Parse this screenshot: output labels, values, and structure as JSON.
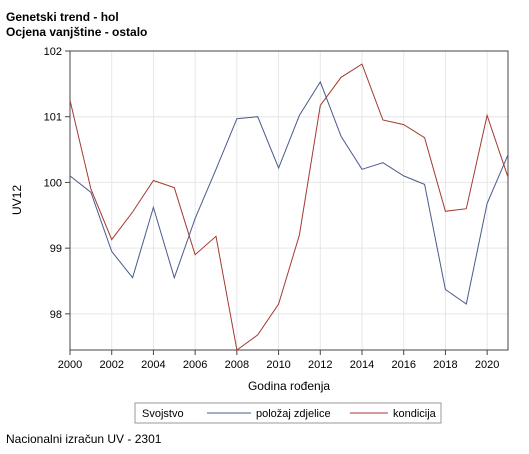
{
  "titles": {
    "line1": "Genetski trend - hol",
    "line2": "Ocjena vanjštine - ostalo"
  },
  "footnote": "Nacionalni izračun UV - 2301",
  "chart_data": {
    "type": "line",
    "xlabel": "Godina rođenja",
    "ylabel": "UV12",
    "xlim": [
      2000,
      2021
    ],
    "ylim": [
      97.45,
      102.0
    ],
    "xticks": [
      2000,
      2002,
      2004,
      2006,
      2008,
      2010,
      2012,
      2014,
      2016,
      2018,
      2020
    ],
    "yticks": [
      98,
      99,
      100,
      101,
      102
    ],
    "grid": true,
    "legend": {
      "title": "Svojstvo",
      "placement": "bottom"
    },
    "x": [
      2000,
      2001,
      2002,
      2003,
      2004,
      2005,
      2006,
      2007,
      2008,
      2009,
      2010,
      2011,
      2012,
      2013,
      2014,
      2015,
      2016,
      2017,
      2018,
      2019,
      2020,
      2021
    ],
    "series": [
      {
        "name": "položaj zdjelice",
        "color": "#4a5a8c",
        "values": [
          100.1,
          99.85,
          98.95,
          98.55,
          99.62,
          98.55,
          99.45,
          100.2,
          100.97,
          101.0,
          100.22,
          101.02,
          101.53,
          100.7,
          100.2,
          100.3,
          100.1,
          99.97,
          98.37,
          98.15,
          99.68,
          100.42
        ]
      },
      {
        "name": "kondicija",
        "color": "#a33a30",
        "values": [
          101.25,
          99.9,
          99.13,
          99.55,
          100.03,
          99.92,
          98.9,
          99.18,
          97.45,
          97.68,
          98.15,
          99.2,
          101.17,
          101.6,
          101.8,
          100.95,
          100.88,
          100.68,
          99.56,
          99.6,
          101.02,
          100.08
        ]
      }
    ]
  }
}
